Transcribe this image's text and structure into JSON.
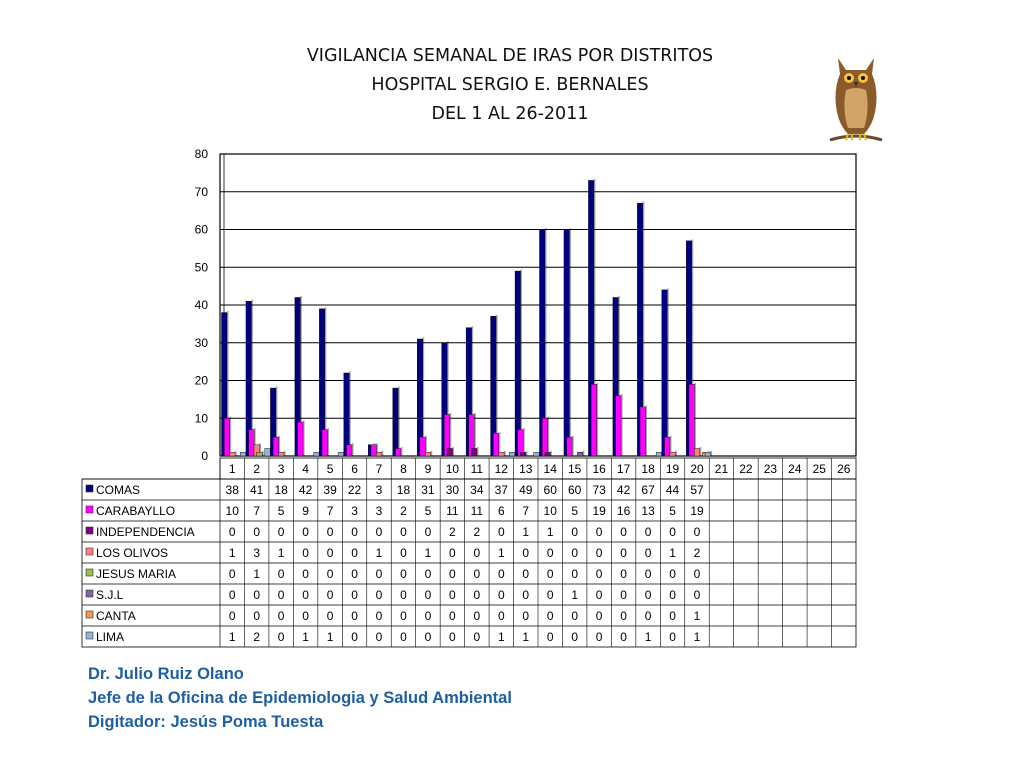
{
  "header": {
    "title_line1": "VIGILANCIA SEMANAL DE IRAS POR DISTRITOS",
    "title_line2": "HOSPITAL SERGIO E. BERNALES",
    "title_line3": "DEL 1 AL 26-2011"
  },
  "footer": {
    "line1": "Dr.  Julio Ruiz Olano",
    "line2": "Jefe de la Oficina de Epidemiologia y  Salud Ambiental",
    "line3": "Digitador: Jesús Poma Tuesta"
  },
  "chart_data": {
    "type": "bar",
    "categories": [
      "1",
      "2",
      "3",
      "4",
      "5",
      "6",
      "7",
      "8",
      "9",
      "10",
      "11",
      "12",
      "13",
      "14",
      "15",
      "16",
      "17",
      "18",
      "19",
      "20",
      "21",
      "22",
      "23",
      "24",
      "25",
      "26"
    ],
    "ylim": [
      0,
      80
    ],
    "yticks": [
      "0",
      "10",
      "20",
      "30",
      "40",
      "50",
      "60",
      "70",
      "80"
    ],
    "series": [
      {
        "name": "COMAS",
        "color": "#000080",
        "values": [
          38,
          41,
          18,
          42,
          39,
          22,
          3,
          18,
          31,
          30,
          34,
          37,
          49,
          60,
          60,
          73,
          42,
          67,
          44,
          57,
          null,
          null,
          null,
          null,
          null,
          null
        ]
      },
      {
        "name": "CARABAYLLO",
        "color": "#ff00ff",
        "values": [
          10,
          7,
          5,
          9,
          7,
          3,
          3,
          2,
          5,
          11,
          11,
          6,
          7,
          10,
          5,
          19,
          16,
          13,
          5,
          19,
          null,
          null,
          null,
          null,
          null,
          null
        ]
      },
      {
        "name": "INDEPENDENCIA",
        "color": "#800080",
        "values": [
          0,
          0,
          0,
          0,
          0,
          0,
          0,
          0,
          0,
          2,
          2,
          0,
          1,
          1,
          0,
          0,
          0,
          0,
          0,
          0,
          null,
          null,
          null,
          null,
          null,
          null
        ]
      },
      {
        "name": "LOS OLIVOS",
        "color": "#ff8080",
        "values": [
          1,
          3,
          1,
          0,
          0,
          0,
          1,
          0,
          1,
          0,
          0,
          1,
          0,
          0,
          0,
          0,
          0,
          0,
          1,
          2,
          null,
          null,
          null,
          null,
          null,
          null
        ]
      },
      {
        "name": "JESUS MARIA",
        "color": "#9bbb59",
        "values": [
          0,
          1,
          0,
          0,
          0,
          0,
          0,
          0,
          0,
          0,
          0,
          0,
          0,
          0,
          0,
          0,
          0,
          0,
          0,
          0,
          null,
          null,
          null,
          null,
          null,
          null
        ]
      },
      {
        "name": "S.J.L",
        "color": "#8064a2",
        "values": [
          0,
          0,
          0,
          0,
          0,
          0,
          0,
          0,
          0,
          0,
          0,
          0,
          0,
          0,
          1,
          0,
          0,
          0,
          0,
          0,
          null,
          null,
          null,
          null,
          null,
          null
        ]
      },
      {
        "name": "CANTA",
        "color": "#f79646",
        "values": [
          0,
          0,
          0,
          0,
          0,
          0,
          0,
          0,
          0,
          0,
          0,
          0,
          0,
          0,
          0,
          0,
          0,
          0,
          0,
          1,
          null,
          null,
          null,
          null,
          null,
          null
        ]
      },
      {
        "name": "LIMA",
        "color": "#95b3d7",
        "values": [
          1,
          2,
          0,
          1,
          1,
          0,
          0,
          0,
          0,
          0,
          0,
          1,
          1,
          0,
          0,
          0,
          0,
          1,
          0,
          1,
          null,
          null,
          null,
          null,
          null,
          null
        ]
      }
    ]
  }
}
